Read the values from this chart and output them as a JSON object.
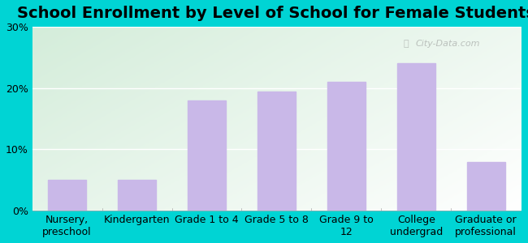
{
  "title": "School Enrollment by Level of School for Female Students",
  "categories": [
    "Nursery,\npreschool",
    "Kindergarten",
    "Grade 1 to 4",
    "Grade 5 to 8",
    "Grade 9 to\n12",
    "College\nundergrad",
    "Graduate or\nprofessional"
  ],
  "values": [
    5.0,
    5.0,
    18.0,
    19.5,
    21.0,
    24.0,
    8.0
  ],
  "bar_color": "#c9b8e8",
  "ylim": [
    0,
    30
  ],
  "yticks": [
    0,
    10,
    20,
    30
  ],
  "ytick_labels": [
    "0%",
    "10%",
    "20%",
    "30%"
  ],
  "background_outer": "#00d4d4",
  "watermark": "City-Data.com",
  "title_fontsize": 14,
  "tick_fontsize": 9
}
